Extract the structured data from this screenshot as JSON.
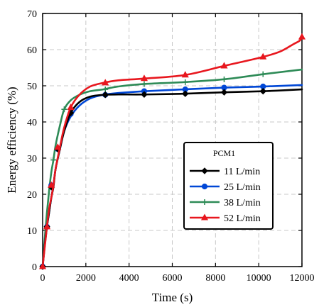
{
  "chart_data": {
    "type": "line",
    "xlabel": "Time (s)",
    "ylabel": "Energy efficiency (%)",
    "xlim": [
      0,
      12000
    ],
    "ylim": [
      0,
      70
    ],
    "xticks": [
      0,
      2000,
      4000,
      6000,
      8000,
      10000,
      12000
    ],
    "yticks": [
      0,
      10,
      20,
      30,
      40,
      50,
      60,
      70
    ],
    "grid": true,
    "legend": {
      "title": "PCM1",
      "placement": "lower-right"
    },
    "series": [
      {
        "name": "11 L/min",
        "color": "#000000",
        "marker": "diamond",
        "x": [
          0,
          100,
          200,
          300,
          400,
          500,
          600,
          800,
          1000,
          1300,
          1700,
          2200,
          2800,
          3500,
          4700,
          6500,
          8400,
          10200,
          12000
        ],
        "y": [
          0,
          6,
          11,
          15,
          19,
          22,
          27,
          32.5,
          37.5,
          42.5,
          45.5,
          47,
          47.5,
          47.6,
          47.6,
          47.8,
          48.2,
          48.5,
          49
        ],
        "markers_x": [
          0,
          200,
          400,
          700,
          1300,
          2900,
          4700,
          6600,
          8400,
          10200
        ],
        "markers_y": [
          0,
          11,
          22,
          32.5,
          42.5,
          47.5,
          47.6,
          47.8,
          48.2,
          48.5
        ]
      },
      {
        "name": "25 L/min",
        "color": "#0047d6",
        "marker": "circle",
        "x": [
          0,
          100,
          200,
          300,
          400,
          500,
          600,
          800,
          1000,
          1300,
          1700,
          2200,
          2800,
          3500,
          4700,
          6500,
          8400,
          10200,
          12000
        ],
        "y": [
          0,
          6,
          11,
          15,
          19,
          22.5,
          27,
          32.5,
          37.5,
          41.5,
          44.5,
          46.5,
          47.5,
          48,
          48.5,
          49,
          49.5,
          49.8,
          50.2
        ],
        "markers_x": [
          0,
          200,
          400,
          700,
          1300,
          2900,
          4700,
          6600,
          8400,
          10200
        ],
        "markers_y": [
          0,
          11,
          22.5,
          32.5,
          42.2,
          47.5,
          48.5,
          49,
          49.5,
          49.8
        ]
      },
      {
        "name": "38 L/min",
        "color": "#2e8b57",
        "marker": "plus",
        "x": [
          0,
          100,
          200,
          300,
          400,
          500,
          600,
          800,
          1000,
          1300,
          1700,
          2200,
          2800,
          3500,
          4700,
          6500,
          8400,
          10200,
          12000
        ],
        "y": [
          0,
          8,
          15,
          21,
          26,
          29.5,
          33.5,
          39,
          43.5,
          46,
          47.5,
          48.5,
          49,
          49.8,
          50.5,
          51,
          51.8,
          53.2,
          54.5
        ],
        "markers_x": [
          0,
          400,
          500,
          1000,
          2900,
          4700,
          6600,
          8400,
          10200
        ],
        "markers_y": [
          0,
          22,
          29.5,
          43.5,
          49,
          50.5,
          51,
          51.8,
          53.2
        ]
      },
      {
        "name": "52 L/min",
        "color": "#e8171e",
        "marker": "triangle",
        "x": [
          0,
          100,
          200,
          300,
          400,
          500,
          600,
          800,
          1000,
          1300,
          1700,
          2200,
          2800,
          3500,
          4700,
          6600,
          8400,
          10200,
          11000,
          11600,
          11900,
          12000
        ],
        "y": [
          0,
          5.5,
          11,
          16,
          19,
          22.5,
          27,
          33,
          38.5,
          44,
          47.5,
          49.8,
          50.8,
          51.5,
          52,
          53,
          55.5,
          58,
          59.5,
          61.5,
          62.5,
          63.5
        ],
        "markers_x": [
          0,
          200,
          400,
          700,
          1300,
          2900,
          4700,
          6600,
          8400,
          10200,
          12000
        ],
        "markers_y": [
          0,
          11,
          22.5,
          33,
          44,
          50.8,
          52,
          53,
          55.5,
          58,
          63.5
        ]
      }
    ]
  }
}
